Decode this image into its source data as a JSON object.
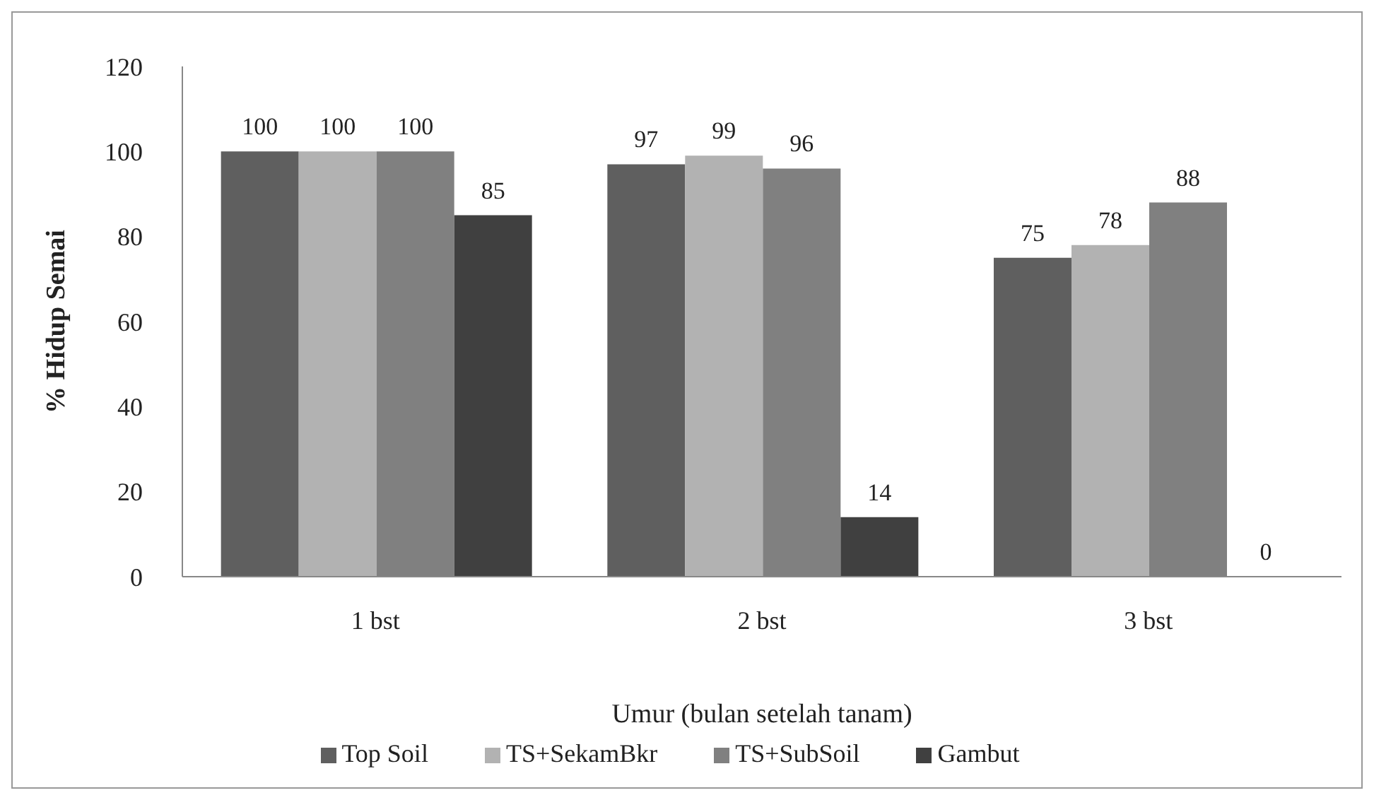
{
  "chart_data": {
    "type": "bar",
    "xlabel": "Umur (bulan setelah tanam)",
    "ylabel": "% Hidup Semai",
    "categories": [
      "1 bst",
      "2 bst",
      "3 bst"
    ],
    "series": [
      {
        "name": "Top Soil",
        "color": "#5f5f5f",
        "values": [
          100,
          97,
          75
        ]
      },
      {
        "name": "TS+SekamBkr",
        "color": "#b2b2b2",
        "values": [
          100,
          99,
          78
        ]
      },
      {
        "name": "TS+SubSoil",
        "color": "#808080",
        "values": [
          100,
          96,
          88
        ]
      },
      {
        "name": "Gambut",
        "color": "#404040",
        "values": [
          85,
          14,
          0
        ]
      }
    ],
    "ylim": [
      0,
      120
    ],
    "yticks": [
      0,
      20,
      40,
      60,
      80,
      100,
      120
    ],
    "data_labels": true,
    "grid": false,
    "legend": "bottom"
  }
}
